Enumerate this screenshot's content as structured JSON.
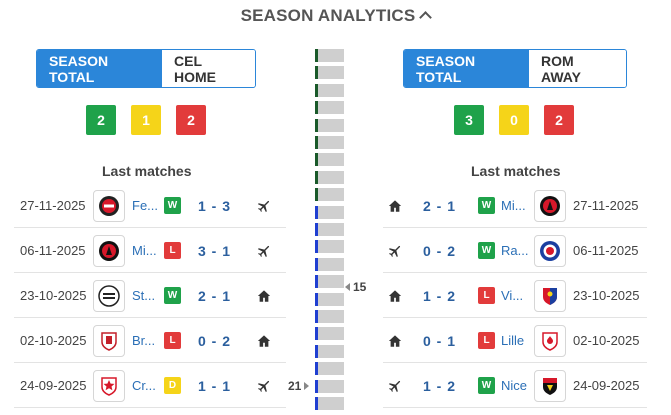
{
  "title": "SEASON ANALYTICS",
  "left": {
    "tabs": [
      {
        "label": "SEASON TOTAL",
        "active": true
      },
      {
        "label": "CEL HOME",
        "active": false
      }
    ],
    "badges": [
      {
        "value": "2",
        "type": "w"
      },
      {
        "value": "1",
        "type": "d"
      },
      {
        "value": "2",
        "type": "l"
      }
    ],
    "section_label": "Last matches",
    "matches": [
      {
        "date": "27-11-2025",
        "team": "Fe...",
        "logo": "feyenoord-logo",
        "result": "W",
        "score": "1 - 3",
        "venue": "plane-icon"
      },
      {
        "date": "06-11-2025",
        "team": "Mi...",
        "logo": "midtjylland-logo",
        "result": "L",
        "score": "3 - 1",
        "venue": "plane-icon"
      },
      {
        "date": "23-10-2025",
        "team": "St...",
        "logo": "sturm-logo",
        "result": "W",
        "score": "2 - 1",
        "venue": "home-icon"
      },
      {
        "date": "02-10-2025",
        "team": "Br...",
        "logo": "braga-logo",
        "result": "L",
        "score": "0 - 2",
        "venue": "home-icon"
      },
      {
        "date": "24-09-2025",
        "team": "Cr...",
        "logo": "crvena-zvezda-logo",
        "result": "D",
        "score": "1 - 1",
        "venue": "plane-icon"
      }
    ]
  },
  "right": {
    "tabs": [
      {
        "label": "SEASON TOTAL",
        "active": true
      },
      {
        "label": "ROM AWAY",
        "active": false
      }
    ],
    "badges": [
      {
        "value": "3",
        "type": "w"
      },
      {
        "value": "0",
        "type": "d"
      },
      {
        "value": "2",
        "type": "l"
      }
    ],
    "section_label": "Last matches",
    "matches": [
      {
        "date": "27-11-2025",
        "team": "Mi...",
        "logo": "midtjylland-logo",
        "result": "W",
        "score": "2 - 1",
        "venue": "home-icon"
      },
      {
        "date": "06-11-2025",
        "team": "Ra...",
        "logo": "rangers-logo",
        "result": "W",
        "score": "0 - 2",
        "venue": "plane-icon"
      },
      {
        "date": "23-10-2025",
        "team": "Vi...",
        "logo": "plzen-logo",
        "result": "L",
        "score": "1 - 2",
        "venue": "home-icon"
      },
      {
        "date": "02-10-2025",
        "team": "Lille",
        "logo": "lille-logo",
        "result": "L",
        "score": "0 - 1",
        "venue": "home-icon"
      },
      {
        "date": "24-09-2025",
        "team": "Nice",
        "logo": "nice-logo",
        "result": "W",
        "score": "1 - 2",
        "venue": "plane-icon"
      }
    ]
  },
  "timeline": {
    "markers": [
      {
        "label": "15",
        "side": "right"
      },
      {
        "label": "21",
        "side": "left"
      }
    ],
    "colors": {
      "green": "#1a5a2a",
      "blue": "#1f3fd1",
      "grey": "#cfcfcf"
    }
  }
}
